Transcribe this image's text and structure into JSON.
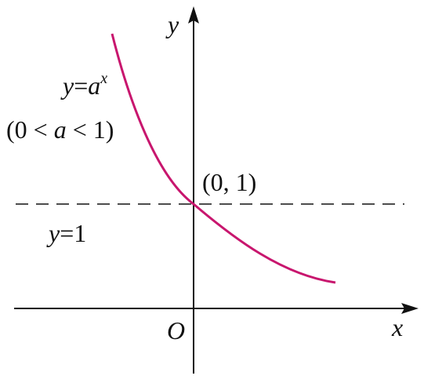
{
  "axes": {
    "x_label": "x",
    "y_label": "y",
    "origin_label": "O"
  },
  "curve_label": [
    "y",
    "=",
    "a",
    "x"
  ],
  "condition": [
    "(0 < ",
    "a",
    " < 1)"
  ],
  "point_label": "(0, 1)",
  "asymptote_label": [
    "y",
    "=1"
  ]
}
